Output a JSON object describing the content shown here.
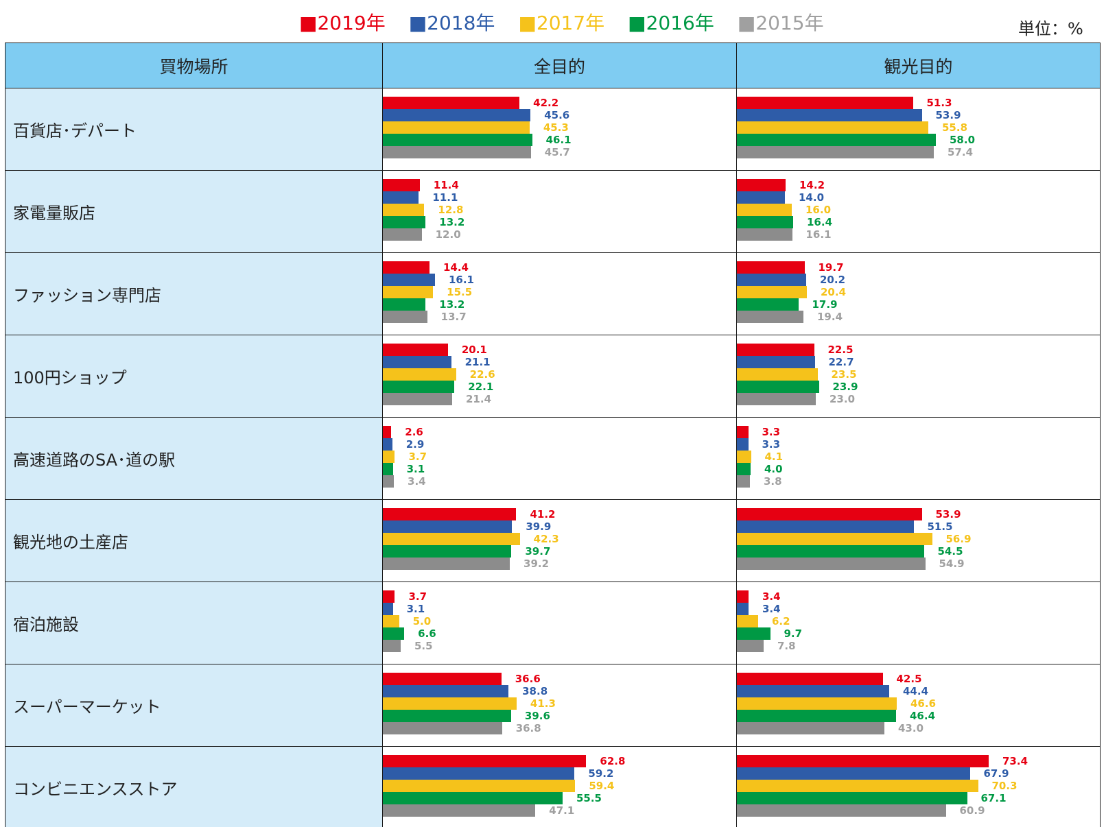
{
  "legend": {
    "items": [
      {
        "label": "■2019年",
        "color": "#e60012"
      },
      {
        "label": "■2018年",
        "color": "#2e5ca8"
      },
      {
        "label": "■2017年",
        "color": "#f5c21b"
      },
      {
        "label": "■2016年",
        "color": "#009944"
      },
      {
        "label": "■2015年",
        "color": "#a0a0a0"
      }
    ],
    "unit": "単位：%"
  },
  "table": {
    "headers": {
      "place": "買物場所",
      "all": "全目的",
      "sightseeing": "観光目的"
    }
  },
  "chart_data": {
    "type": "bar",
    "orientation": "horizontal",
    "series_names": [
      "2019年",
      "2018年",
      "2017年",
      "2016年",
      "2015年"
    ],
    "series_colors": [
      "#e60012",
      "#2e5ca8",
      "#f5c21b",
      "#009944",
      "#8c8c8c"
    ],
    "label_colors": [
      "#e60012",
      "#2e5ca8",
      "#f5c21b",
      "#009944",
      "#a0a0a0"
    ],
    "xlim": [
      0,
      80
    ],
    "categories": [
      {
        "name": "百貨店･デパート",
        "all": [
          "42.2",
          "45.6",
          "45.3",
          "46.1",
          "45.7"
        ],
        "sightseeing": [
          "51.3",
          "53.9",
          "55.8",
          "58.0",
          "57.4"
        ]
      },
      {
        "name": "家電量販店",
        "all": [
          "11.4",
          "11.1",
          "12.8",
          "13.2",
          "12.0"
        ],
        "sightseeing": [
          "14.2",
          "14.0",
          "16.0",
          "16.4",
          "16.1"
        ]
      },
      {
        "name": "ファッション専門店",
        "all": [
          "14.4",
          "16.1",
          "15.5",
          "13.2",
          "13.7"
        ],
        "sightseeing": [
          "19.7",
          "20.2",
          "20.4",
          "17.9",
          "19.4"
        ]
      },
      {
        "name": "100円ショップ",
        "all": [
          "20.1",
          "21.1",
          "22.6",
          "22.1",
          "21.4"
        ],
        "sightseeing": [
          "22.5",
          "22.7",
          "23.5",
          "23.9",
          "23.0"
        ]
      },
      {
        "name": "高速道路のSA･道の駅",
        "all": [
          "2.6",
          "2.9",
          "3.7",
          "3.1",
          "3.4"
        ],
        "sightseeing": [
          "3.3",
          "3.3",
          "4.1",
          "4.0",
          "3.8"
        ]
      },
      {
        "name": "観光地の土産店",
        "all": [
          "41.2",
          "39.9",
          "42.3",
          "39.7",
          "39.2"
        ],
        "sightseeing": [
          "53.9",
          "51.5",
          "56.9",
          "54.5",
          "54.9"
        ]
      },
      {
        "name": "宿泊施設",
        "all": [
          "3.7",
          "3.1",
          "5.0",
          "6.6",
          "5.5"
        ],
        "sightseeing": [
          "3.4",
          "3.4",
          "6.2",
          "9.7",
          "7.8"
        ]
      },
      {
        "name": "スーパーマーケット",
        "all": [
          "36.6",
          "38.8",
          "41.3",
          "39.6",
          "36.8"
        ],
        "sightseeing": [
          "42.5",
          "44.4",
          "46.6",
          "46.4",
          "43.0"
        ]
      },
      {
        "name": "コンビニエンスストア",
        "all": [
          "62.8",
          "59.2",
          "59.4",
          "55.5",
          "47.1"
        ],
        "sightseeing": [
          "73.4",
          "67.9",
          "70.3",
          "67.1",
          "60.9"
        ]
      }
    ]
  }
}
